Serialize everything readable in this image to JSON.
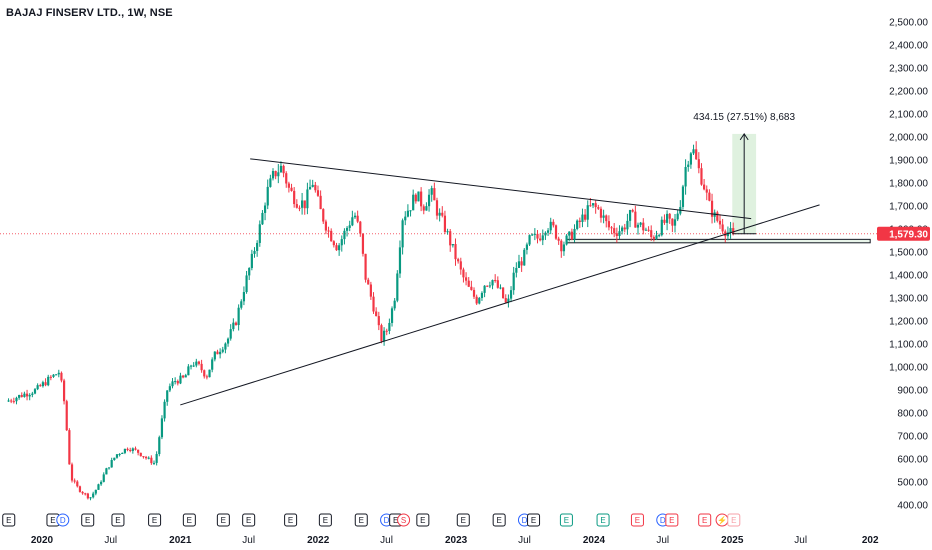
{
  "chart_title": "BAJAJ FINSERV LTD., 1W, NSE",
  "chart_data": {
    "type": "candlestick",
    "symbol": "BAJAJ FINSERV LTD.",
    "interval": "1W",
    "exchange": "NSE",
    "y_axis": {
      "ylim": [
        380,
        2550
      ],
      "ticks": [
        "2,500.00",
        "2,400.00",
        "2,300.00",
        "2,200.00",
        "2,100.00",
        "2,000.00",
        "1,900.00",
        "1,800.00",
        "1,700.00",
        "1,600.00",
        "1,500.00",
        "1,400.00",
        "1,300.00",
        "1,200.00",
        "1,100.00",
        "1,000.00",
        "900.00",
        "800.00",
        "700.00",
        "600.00",
        "500.00",
        "400.00"
      ],
      "tick_values": [
        2500,
        2400,
        2300,
        2200,
        2100,
        2000,
        1900,
        1800,
        1700,
        1600,
        1500,
        1400,
        1300,
        1200,
        1100,
        1000,
        900,
        800,
        700,
        600,
        500,
        400
      ]
    },
    "x_axis": {
      "ticks": [
        {
          "label": "2020",
          "date": "2020-01-01",
          "year": true
        },
        {
          "label": "Jul",
          "date": "2020-07-01",
          "year": false
        },
        {
          "label": "2021",
          "date": "2021-01-01",
          "year": true
        },
        {
          "label": "Jul",
          "date": "2021-07-01",
          "year": false
        },
        {
          "label": "2022",
          "date": "2022-01-01",
          "year": true
        },
        {
          "label": "Jul",
          "date": "2022-07-01",
          "year": false
        },
        {
          "label": "2023",
          "date": "2023-01-01",
          "year": true
        },
        {
          "label": "Jul",
          "date": "2023-07-01",
          "year": false
        },
        {
          "label": "2024",
          "date": "2024-01-01",
          "year": true
        },
        {
          "label": "Jul",
          "date": "2024-07-01",
          "year": false
        },
        {
          "label": "2025",
          "date": "2025-01-01",
          "year": true
        },
        {
          "label": "Jul",
          "date": "2025-07-01",
          "year": false
        },
        {
          "label": "202",
          "date": "2026-01-01",
          "year": true
        }
      ]
    },
    "current_price": {
      "value": 1579.3,
      "label": "1,579.30",
      "color": "#f23645"
    },
    "price_path": [
      [
        "2019-10-01",
        850
      ],
      [
        "2019-11-15",
        880
      ],
      [
        "2019-12-20",
        900
      ],
      [
        "2020-01-25",
        950
      ],
      [
        "2020-02-20",
        980
      ],
      [
        "2020-03-05",
        830
      ],
      [
        "2020-03-20",
        520
      ],
      [
        "2020-04-10",
        470
      ],
      [
        "2020-05-10",
        430
      ],
      [
        "2020-06-01",
        480
      ],
      [
        "2020-06-25",
        560
      ],
      [
        "2020-07-20",
        620
      ],
      [
        "2020-08-20",
        650
      ],
      [
        "2020-09-15",
        630
      ],
      [
        "2020-10-10",
        600
      ],
      [
        "2020-10-30",
        580
      ],
      [
        "2020-11-15",
        750
      ],
      [
        "2020-12-01",
        900
      ],
      [
        "2020-12-20",
        940
      ],
      [
        "2021-01-15",
        950
      ],
      [
        "2021-02-05",
        1020
      ],
      [
        "2021-02-25",
        1000
      ],
      [
        "2021-03-15",
        960
      ],
      [
        "2021-04-05",
        1050
      ],
      [
        "2021-05-10",
        1120
      ],
      [
        "2021-06-01",
        1200
      ],
      [
        "2021-06-20",
        1330
      ],
      [
        "2021-07-15",
        1480
      ],
      [
        "2021-08-05",
        1620
      ],
      [
        "2021-08-20",
        1750
      ],
      [
        "2021-09-10",
        1840
      ],
      [
        "2021-09-30",
        1870
      ],
      [
        "2021-10-20",
        1770
      ],
      [
        "2021-11-10",
        1720
      ],
      [
        "2021-12-01",
        1710
      ],
      [
        "2021-12-20",
        1810
      ],
      [
        "2022-01-10",
        1680
      ],
      [
        "2022-02-01",
        1590
      ],
      [
        "2022-02-25",
        1520
      ],
      [
        "2022-03-20",
        1600
      ],
      [
        "2022-04-10",
        1670
      ],
      [
        "2022-04-25",
        1580
      ],
      [
        "2022-05-10",
        1390
      ],
      [
        "2022-05-30",
        1270
      ],
      [
        "2022-06-20",
        1120
      ],
      [
        "2022-07-05",
        1160
      ],
      [
        "2022-07-25",
        1290
      ],
      [
        "2022-08-15",
        1650
      ],
      [
        "2022-09-05",
        1700
      ],
      [
        "2022-09-20",
        1750
      ],
      [
        "2022-10-10",
        1700
      ],
      [
        "2022-10-30",
        1760
      ],
      [
        "2022-11-15",
        1680
      ],
      [
        "2022-12-05",
        1610
      ],
      [
        "2022-12-25",
        1520
      ],
      [
        "2023-01-20",
        1400
      ],
      [
        "2023-02-10",
        1330
      ],
      [
        "2023-03-01",
        1290
      ],
      [
        "2023-03-20",
        1360
      ],
      [
        "2023-04-10",
        1380
      ],
      [
        "2023-05-01",
        1330
      ],
      [
        "2023-05-20",
        1260
      ],
      [
        "2023-06-10",
        1430
      ],
      [
        "2023-07-01",
        1470
      ],
      [
        "2023-07-20",
        1560
      ],
      [
        "2023-08-10",
        1560
      ],
      [
        "2023-09-01",
        1620
      ],
      [
        "2023-09-20",
        1600
      ],
      [
        "2023-10-10",
        1530
      ],
      [
        "2023-10-30",
        1560
      ],
      [
        "2023-11-20",
        1610
      ],
      [
        "2023-12-10",
        1660
      ],
      [
        "2023-12-30",
        1700
      ],
      [
        "2024-01-20",
        1680
      ],
      [
        "2024-02-10",
        1610
      ],
      [
        "2024-03-01",
        1590
      ],
      [
        "2024-03-20",
        1600
      ],
      [
        "2024-04-10",
        1660
      ],
      [
        "2024-04-30",
        1620
      ],
      [
        "2024-05-20",
        1600
      ],
      [
        "2024-06-05",
        1560
      ],
      [
        "2024-06-25",
        1600
      ],
      [
        "2024-07-15",
        1640
      ],
      [
        "2024-08-01",
        1600
      ],
      [
        "2024-08-20",
        1720
      ],
      [
        "2024-09-05",
        1890
      ],
      [
        "2024-09-20",
        1960
      ],
      [
        "2024-10-05",
        1870
      ],
      [
        "2024-10-20",
        1800
      ],
      [
        "2024-11-05",
        1700
      ],
      [
        "2024-11-20",
        1650
      ],
      [
        "2024-12-05",
        1620
      ],
      [
        "2024-12-20",
        1590
      ],
      [
        "2025-01-01",
        1579
      ]
    ],
    "overlays": {
      "resistance_line": [
        [
          "2021-07-05",
          1905
        ],
        [
          "2025-02-20",
          1645
        ]
      ],
      "support_line": [
        [
          "2021-01-01",
          835
        ],
        [
          "2025-08-20",
          1705
        ]
      ],
      "horizontal_zone": [
        [
          "2023-10-20",
          1555
        ],
        [
          "2026-01-01",
          1540
        ]
      ],
      "measure_box": {
        "x": [
          "2025-01-01",
          "2025-03-05"
        ],
        "y": [
          1579.3,
          2013.45
        ],
        "label": "434.15 (27.51%) 8,683",
        "color": "#4caf50"
      }
    },
    "event_markers": [
      {
        "date": "2019-10-05",
        "letter": "E",
        "kind": "earnings"
      },
      {
        "date": "2020-01-30",
        "letter": "E",
        "kind": "earnings"
      },
      {
        "date": "2020-02-25",
        "letter": "D",
        "kind": "dividend"
      },
      {
        "date": "2020-05-01",
        "letter": "E",
        "kind": "earnings"
      },
      {
        "date": "2020-07-20",
        "letter": "E",
        "kind": "earnings"
      },
      {
        "date": "2020-10-25",
        "letter": "E",
        "kind": "earnings"
      },
      {
        "date": "2021-01-25",
        "letter": "E",
        "kind": "earnings"
      },
      {
        "date": "2021-04-25",
        "letter": "E",
        "kind": "earnings"
      },
      {
        "date": "2021-07-01",
        "letter": "E",
        "kind": "earnings"
      },
      {
        "date": "2021-10-20",
        "letter": "E",
        "kind": "earnings"
      },
      {
        "date": "2022-01-20",
        "letter": "E",
        "kind": "earnings"
      },
      {
        "date": "2022-04-25",
        "letter": "E",
        "kind": "earnings"
      },
      {
        "date": "2022-07-01",
        "letter": "D",
        "kind": "dividend"
      },
      {
        "date": "2022-07-25",
        "letter": "E",
        "kind": "earnings"
      },
      {
        "date": "2022-08-15",
        "letter": "S",
        "kind": "split"
      },
      {
        "date": "2022-10-05",
        "letter": "E",
        "kind": "earnings"
      },
      {
        "date": "2023-01-20",
        "letter": "E",
        "kind": "earnings"
      },
      {
        "date": "2023-04-25",
        "letter": "E",
        "kind": "earnings"
      },
      {
        "date": "2023-07-01",
        "letter": "D",
        "kind": "dividend"
      },
      {
        "date": "2023-07-25",
        "letter": "E",
        "kind": "earnings"
      },
      {
        "date": "2023-10-20",
        "letter": "E",
        "kind": "earnings-green"
      },
      {
        "date": "2024-01-25",
        "letter": "E",
        "kind": "earnings-green"
      },
      {
        "date": "2024-04-25",
        "letter": "E",
        "kind": "earnings-red"
      },
      {
        "date": "2024-07-01",
        "letter": "D",
        "kind": "dividend"
      },
      {
        "date": "2024-07-25",
        "letter": "E",
        "kind": "earnings-red"
      },
      {
        "date": "2024-10-20",
        "letter": "E",
        "kind": "earnings-red"
      },
      {
        "date": "2024-12-05",
        "letter": "⚡",
        "kind": "split"
      },
      {
        "date": "2025-01-05",
        "letter": "E",
        "kind": "earnings-future"
      }
    ],
    "colors": {
      "up": "#089981",
      "down": "#f23645",
      "line": "#131722"
    },
    "grid": false,
    "legend": "none"
  }
}
